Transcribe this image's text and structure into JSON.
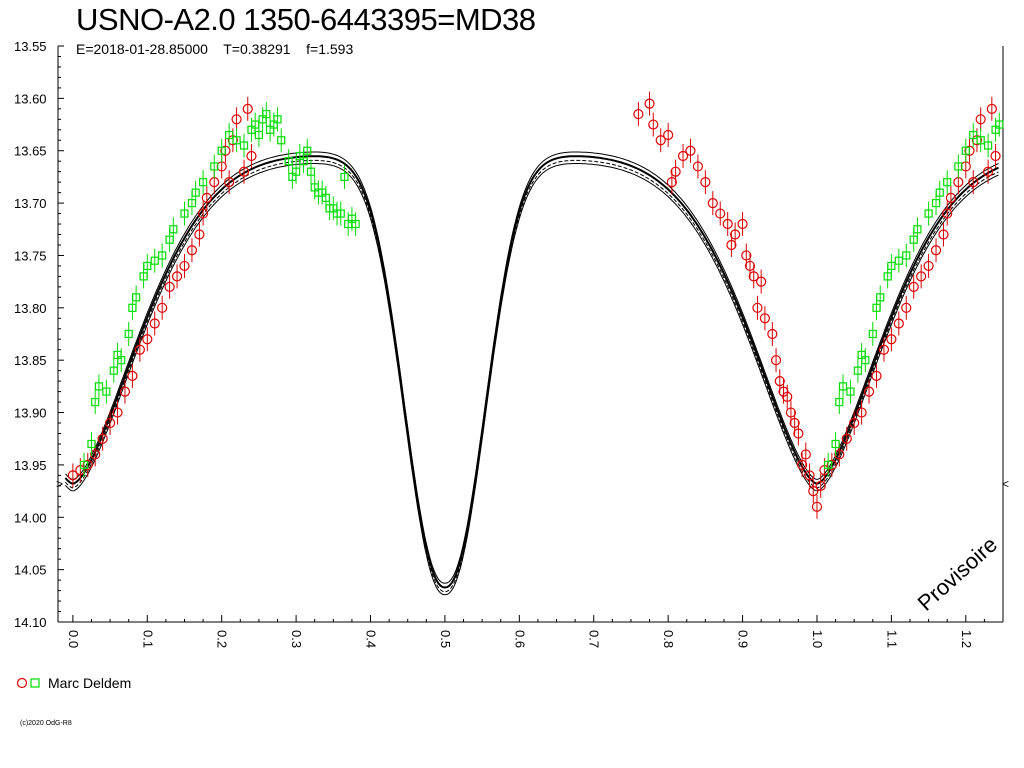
{
  "header": {
    "title": "USNO-A2.0 1350-6443395=MD38",
    "subtitle": "E=2018-01-28.85000    T=0.38291    f=1.593"
  },
  "watermark": "Provisoire",
  "copyright": "(c)2020 OdG-R8",
  "legend": {
    "label": "Marc Deldem",
    "colors": {
      "red": "#dd0000",
      "green": "#00dd00"
    }
  },
  "chart_data": {
    "type": "scatter",
    "x_axis": {
      "range": [
        -0.02,
        1.25
      ],
      "ticks": [
        "0.0",
        "0.1",
        "0.2",
        "0.3",
        "0.4",
        "0.5",
        "0.6",
        "0.7",
        "0.8",
        "0.9",
        "1.0",
        "1.1",
        "1.2"
      ],
      "tick_values": [
        0.0,
        0.1,
        0.2,
        0.3,
        0.4,
        0.5,
        0.6,
        0.7,
        0.8,
        0.9,
        1.0,
        1.1,
        1.2
      ]
    },
    "y_axis": {
      "range": [
        13.55,
        14.1
      ],
      "inverted": true,
      "ticks": [
        "13.55",
        "13.60",
        "13.65",
        "13.70",
        "13.75",
        "13.80",
        "13.85",
        "13.90",
        "13.95",
        "14.00",
        "14.05",
        "14.10"
      ],
      "tick_values": [
        13.55,
        13.6,
        13.65,
        13.7,
        13.75,
        13.8,
        13.85,
        13.9,
        13.95,
        14.0,
        14.05,
        14.1
      ]
    },
    "model": {
      "maximum_phase": 0.265,
      "maximum_mag": 13.645,
      "primary_minimum": {
        "phase": 0.0,
        "mag": 13.98
      },
      "secondary_minimum": {
        "phase": 0.5,
        "mag": 14.055
      },
      "second_maximum": {
        "phase": 0.715,
        "mag": 13.635
      },
      "line_color": "#000000"
    },
    "series": [
      {
        "name": "Marc Deldem",
        "marker": "circle",
        "color": "#dd0000",
        "points": [
          [
            0.0,
            13.96
          ],
          [
            0.01,
            13.955
          ],
          [
            0.02,
            13.95
          ],
          [
            0.03,
            13.94
          ],
          [
            0.04,
            13.925
          ],
          [
            0.05,
            13.91
          ],
          [
            0.06,
            13.9
          ],
          [
            0.07,
            13.88
          ],
          [
            0.08,
            13.865
          ],
          [
            0.09,
            13.84
          ],
          [
            0.1,
            13.83
          ],
          [
            0.11,
            13.815
          ],
          [
            0.12,
            13.8
          ],
          [
            0.13,
            13.78
          ],
          [
            0.14,
            13.77
          ],
          [
            0.15,
            13.76
          ],
          [
            0.16,
            13.745
          ],
          [
            0.17,
            13.73
          ],
          [
            0.175,
            13.71
          ],
          [
            0.18,
            13.695
          ],
          [
            0.19,
            13.68
          ],
          [
            0.2,
            13.665
          ],
          [
            0.205,
            13.65
          ],
          [
            0.21,
            13.68
          ],
          [
            0.215,
            13.64
          ],
          [
            0.22,
            13.62
          ],
          [
            0.23,
            13.67
          ],
          [
            0.235,
            13.61
          ],
          [
            0.24,
            13.655
          ],
          [
            0.76,
            13.615
          ],
          [
            0.775,
            13.605
          ],
          [
            0.78,
            13.625
          ],
          [
            0.79,
            13.64
          ],
          [
            0.8,
            13.635
          ],
          [
            0.805,
            13.68
          ],
          [
            0.81,
            13.67
          ],
          [
            0.82,
            13.655
          ],
          [
            0.83,
            13.65
          ],
          [
            0.84,
            13.665
          ],
          [
            0.85,
            13.68
          ],
          [
            0.86,
            13.7
          ],
          [
            0.87,
            13.71
          ],
          [
            0.88,
            13.72
          ],
          [
            0.885,
            13.74
          ],
          [
            0.89,
            13.73
          ],
          [
            0.9,
            13.72
          ],
          [
            0.905,
            13.75
          ],
          [
            0.91,
            13.76
          ],
          [
            0.915,
            13.77
          ],
          [
            0.92,
            13.8
          ],
          [
            0.925,
            13.775
          ],
          [
            0.93,
            13.81
          ],
          [
            0.94,
            13.825
          ],
          [
            0.945,
            13.85
          ],
          [
            0.95,
            13.87
          ],
          [
            0.955,
            13.88
          ],
          [
            0.96,
            13.885
          ],
          [
            0.965,
            13.9
          ],
          [
            0.97,
            13.91
          ],
          [
            0.975,
            13.92
          ],
          [
            0.98,
            13.95
          ],
          [
            0.985,
            13.94
          ],
          [
            0.99,
            13.96
          ],
          [
            0.995,
            13.975
          ],
          [
            1.0,
            13.99
          ],
          [
            1.005,
            13.97
          ],
          [
            1.01,
            13.955
          ],
          [
            1.02,
            13.95
          ],
          [
            1.03,
            13.94
          ],
          [
            1.04,
            13.925
          ],
          [
            1.05,
            13.91
          ],
          [
            1.06,
            13.9
          ],
          [
            1.07,
            13.88
          ],
          [
            1.08,
            13.865
          ],
          [
            1.09,
            13.84
          ],
          [
            1.1,
            13.83
          ],
          [
            1.11,
            13.815
          ],
          [
            1.12,
            13.8
          ],
          [
            1.13,
            13.78
          ],
          [
            1.14,
            13.77
          ],
          [
            1.15,
            13.76
          ],
          [
            1.16,
            13.745
          ],
          [
            1.17,
            13.73
          ],
          [
            1.175,
            13.71
          ],
          [
            1.18,
            13.695
          ],
          [
            1.19,
            13.68
          ],
          [
            1.2,
            13.665
          ],
          [
            1.205,
            13.65
          ],
          [
            1.21,
            13.68
          ],
          [
            1.215,
            13.64
          ],
          [
            1.22,
            13.62
          ],
          [
            1.23,
            13.67
          ],
          [
            1.235,
            13.61
          ],
          [
            1.24,
            13.655
          ]
        ]
      },
      {
        "name": "Marc Deldem",
        "marker": "square",
        "color": "#00dd00",
        "points": [
          [
            0.015,
            13.95
          ],
          [
            0.025,
            13.93
          ],
          [
            0.03,
            13.89
          ],
          [
            0.035,
            13.875
          ],
          [
            0.045,
            13.88
          ],
          [
            0.055,
            13.86
          ],
          [
            0.06,
            13.845
          ],
          [
            0.065,
            13.85
          ],
          [
            0.075,
            13.825
          ],
          [
            0.08,
            13.8
          ],
          [
            0.085,
            13.79
          ],
          [
            0.095,
            13.77
          ],
          [
            0.1,
            13.76
          ],
          [
            0.11,
            13.755
          ],
          [
            0.12,
            13.75
          ],
          [
            0.13,
            13.735
          ],
          [
            0.135,
            13.725
          ],
          [
            0.15,
            13.71
          ],
          [
            0.16,
            13.7
          ],
          [
            0.165,
            13.69
          ],
          [
            0.175,
            13.68
          ],
          [
            0.19,
            13.665
          ],
          [
            0.2,
            13.65
          ],
          [
            0.21,
            13.635
          ],
          [
            0.22,
            13.64
          ],
          [
            0.23,
            13.645
          ],
          [
            0.24,
            13.63
          ],
          [
            0.245,
            13.625
          ],
          [
            0.25,
            13.635
          ],
          [
            0.255,
            13.62
          ],
          [
            0.26,
            13.615
          ],
          [
            0.265,
            13.63
          ],
          [
            0.27,
            13.625
          ],
          [
            0.275,
            13.62
          ],
          [
            0.28,
            13.64
          ],
          [
            0.29,
            13.66
          ],
          [
            0.295,
            13.675
          ],
          [
            0.3,
            13.67
          ],
          [
            0.305,
            13.655
          ],
          [
            0.31,
            13.66
          ],
          [
            0.315,
            13.65
          ],
          [
            0.32,
            13.67
          ],
          [
            0.325,
            13.685
          ],
          [
            0.33,
            13.69
          ],
          [
            0.335,
            13.69
          ],
          [
            0.34,
            13.695
          ],
          [
            0.345,
            13.705
          ],
          [
            0.35,
            13.705
          ],
          [
            0.355,
            13.71
          ],
          [
            0.36,
            13.71
          ],
          [
            0.365,
            13.675
          ],
          [
            0.37,
            13.72
          ],
          [
            0.375,
            13.715
          ],
          [
            0.38,
            13.72
          ],
          [
            1.015,
            13.95
          ],
          [
            1.025,
            13.93
          ],
          [
            1.03,
            13.89
          ],
          [
            1.035,
            13.875
          ],
          [
            1.045,
            13.88
          ],
          [
            1.055,
            13.86
          ],
          [
            1.06,
            13.845
          ],
          [
            1.065,
            13.85
          ],
          [
            1.075,
            13.825
          ],
          [
            1.08,
            13.8
          ],
          [
            1.085,
            13.79
          ],
          [
            1.095,
            13.77
          ],
          [
            1.1,
            13.76
          ],
          [
            1.11,
            13.755
          ],
          [
            1.12,
            13.75
          ],
          [
            1.13,
            13.735
          ],
          [
            1.135,
            13.725
          ],
          [
            1.15,
            13.71
          ],
          [
            1.16,
            13.7
          ],
          [
            1.165,
            13.69
          ],
          [
            1.175,
            13.68
          ],
          [
            1.19,
            13.665
          ],
          [
            1.2,
            13.65
          ],
          [
            1.21,
            13.635
          ],
          [
            1.22,
            13.64
          ],
          [
            1.23,
            13.645
          ],
          [
            1.24,
            13.63
          ],
          [
            1.245,
            13.625
          ]
        ]
      }
    ]
  }
}
